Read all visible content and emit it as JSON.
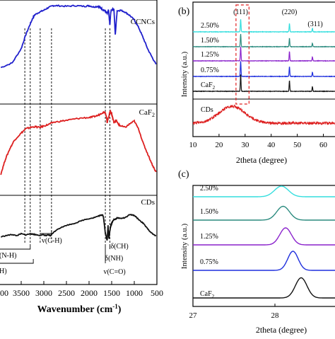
{
  "chart_data": [
    {
      "type": "line",
      "panel": "a",
      "xlabel": "Wavenumber (cm",
      "xlabel_sup": "-1",
      "xlabel_tail": ")",
      "xlim": [
        4000,
        500
      ],
      "x_ticks": [
        {
          "value": 3500,
          "label": "3500"
        },
        {
          "value": 3000,
          "label": "3000"
        },
        {
          "value": 2500,
          "label": "2500"
        },
        {
          "value": 2000,
          "label": "2000"
        },
        {
          "value": 1500,
          "label": "1500"
        },
        {
          "value": 1000,
          "label": "1000"
        },
        {
          "value": 500,
          "label": "500"
        }
      ],
      "x_tick_partial": "00",
      "y_scale": "arbitrary transmittance, stacked",
      "series": [
        {
          "name": "CCNCs",
          "color": "#1f1fcc",
          "x": [
            3950,
            3700,
            3500,
            3400,
            3300,
            3250,
            3200,
            3100,
            3000,
            2900,
            2800,
            2700,
            2500,
            2300,
            2100,
            2000,
            1900,
            1800,
            1750,
            1700,
            1650,
            1600,
            1570,
            1540,
            1520,
            1500,
            1450,
            1420,
            1380,
            1300,
            1200,
            1100,
            1000,
            900,
            800,
            700,
            600,
            520
          ],
          "y": [
            0.05,
            0.12,
            0.34,
            0.55,
            0.72,
            0.8,
            0.86,
            0.9,
            0.93,
            0.97,
            1.0,
            1.0,
            0.99,
            1.0,
            0.99,
            1.0,
            0.98,
            0.99,
            0.97,
            0.94,
            0.92,
            0.88,
            0.93,
            0.7,
            0.9,
            0.94,
            0.95,
            0.55,
            0.92,
            0.93,
            0.9,
            0.85,
            0.78,
            0.66,
            0.5,
            0.33,
            0.2,
            0.1
          ]
        },
        {
          "name": "CaF2",
          "color": "#dd1f1f",
          "x": [
            3950,
            3850,
            3750,
            3650,
            3500,
            3400,
            3300,
            3200,
            3100,
            3000,
            2900,
            2800,
            2600,
            2400,
            2200,
            2000,
            1900,
            1800,
            1700,
            1650,
            1620,
            1600,
            1570,
            1540,
            1520,
            1500,
            1480,
            1450,
            1400,
            1350,
            1300,
            1200,
            1100,
            1000,
            900,
            800,
            700,
            600,
            520
          ],
          "y": [
            0.12,
            0.33,
            0.48,
            0.6,
            0.7,
            0.76,
            0.78,
            0.79,
            0.78,
            0.8,
            0.82,
            0.85,
            0.87,
            0.89,
            0.91,
            0.92,
            0.93,
            0.95,
            0.99,
            1.0,
            0.95,
            0.85,
            0.92,
            0.99,
            1.0,
            0.97,
            0.92,
            0.85,
            0.88,
            0.82,
            0.8,
            0.78,
            0.83,
            0.87,
            0.75,
            0.55,
            0.4,
            0.25,
            0.15
          ]
        },
        {
          "name": "CDs",
          "color": "#111111",
          "x": [
            3950,
            3800,
            3700,
            3600,
            3500,
            3400,
            3300,
            3250,
            3200,
            3100,
            3000,
            2950,
            2900,
            2850,
            2800,
            2700,
            2500,
            2300,
            2100,
            1900,
            1800,
            1750,
            1700,
            1680,
            1660,
            1640,
            1620,
            1600,
            1580,
            1560,
            1540,
            1520,
            1500,
            1480,
            1450,
            1400,
            1380,
            1300,
            1200,
            1100,
            1000,
            900,
            800,
            700,
            600,
            520
          ],
          "y": [
            0.1,
            0.14,
            0.16,
            0.13,
            0.18,
            0.15,
            0.18,
            0.17,
            0.16,
            0.14,
            0.15,
            0.13,
            0.15,
            0.13,
            0.2,
            0.3,
            0.4,
            0.46,
            0.55,
            0.6,
            0.64,
            0.66,
            0.68,
            0.6,
            0.4,
            0.2,
            0.1,
            0.0,
            0.4,
            0.05,
            0.25,
            0.38,
            0.44,
            0.5,
            0.55,
            0.57,
            0.6,
            0.58,
            0.6,
            0.68,
            0.66,
            0.55,
            0.45,
            0.3,
            0.18,
            0.12
          ]
        }
      ],
      "guide_lines": [
        3420,
        3300,
        3080,
        2830,
        1640,
        1540
      ],
      "annotations": [
        {
          "text": "(N-H)",
          "anchor_x": 3300
        },
        {
          "text": "v(C-H)",
          "anchor_x": 2960
        },
        {
          "text": "δ(NH)",
          "anchor_x": 1600
        },
        {
          "text": "v(C=O)",
          "anchor_x": 1600
        },
        {
          "text": "δ(CH)",
          "anchor_x": 1440
        },
        {
          "text": "H)",
          "anchor_x": 3900
        }
      ]
    },
    {
      "type": "line",
      "panel": "b",
      "panel_label": "(b)",
      "xlabel": "2theta (degree)",
      "ylabel": "Intensity (a.u.)",
      "xlim": [
        10,
        65
      ],
      "x_ticks": [
        10,
        20,
        30,
        40,
        50,
        60
      ],
      "y_scale": "arbitrary intensity, stacked",
      "peaks": [
        {
          "label": "(111)",
          "x": 28.3
        },
        {
          "label": "(220)",
          "x": 47.0
        },
        {
          "label": "(311)",
          "x": 55.8
        }
      ],
      "series": [
        {
          "name": "2.50%",
          "color": "#33dede",
          "peak_heights": [
            0.9,
            0.6,
            0.25
          ]
        },
        {
          "name": "1.50%",
          "color": "#2a8a7e",
          "peak_heights": [
            0.9,
            0.6,
            0.25
          ]
        },
        {
          "name": "1.25%",
          "color": "#8a22cc",
          "peak_heights": [
            1.0,
            0.65,
            0.28
          ]
        },
        {
          "name": "0.75%",
          "color": "#1f2fdd",
          "peak_heights": [
            1.1,
            0.7,
            0.3
          ]
        },
        {
          "name": "CaF2",
          "color": "#111111",
          "peak_heights": [
            1.2,
            0.75,
            0.32
          ]
        },
        {
          "name": "CDs",
          "color": "#dd1f1f",
          "broad_peak_center": 25,
          "broad_peak_height": 0.7
        }
      ],
      "highlight_box_x": [
        26.5,
        31.5
      ]
    },
    {
      "type": "line",
      "panel": "c",
      "panel_label": "(c)",
      "xlabel": "2theta (degree)",
      "ylabel": "Intensity (a.u.)",
      "xlim": [
        27,
        28.75
      ],
      "x_ticks": [
        27,
        28
      ],
      "y_scale": "arbitrary intensity, stacked",
      "series": [
        {
          "name": "2.50%",
          "color": "#33dede",
          "peak_center": 28.08,
          "peak_height": 0.5,
          "peak_width": 0.12
        },
        {
          "name": "1.50%",
          "color": "#2a8a7e",
          "peak_center": 28.1,
          "peak_height": 0.65,
          "peak_width": 0.11
        },
        {
          "name": "1.25%",
          "color": "#8a22cc",
          "peak_center": 28.13,
          "peak_height": 0.8,
          "peak_width": 0.1
        },
        {
          "name": "0.75%",
          "color": "#1f2fdd",
          "peak_center": 28.22,
          "peak_height": 0.9,
          "peak_width": 0.09
        },
        {
          "name": "CaF2",
          "color": "#111111",
          "peak_center": 28.32,
          "peak_height": 0.95,
          "peak_width": 0.1
        }
      ]
    }
  ]
}
